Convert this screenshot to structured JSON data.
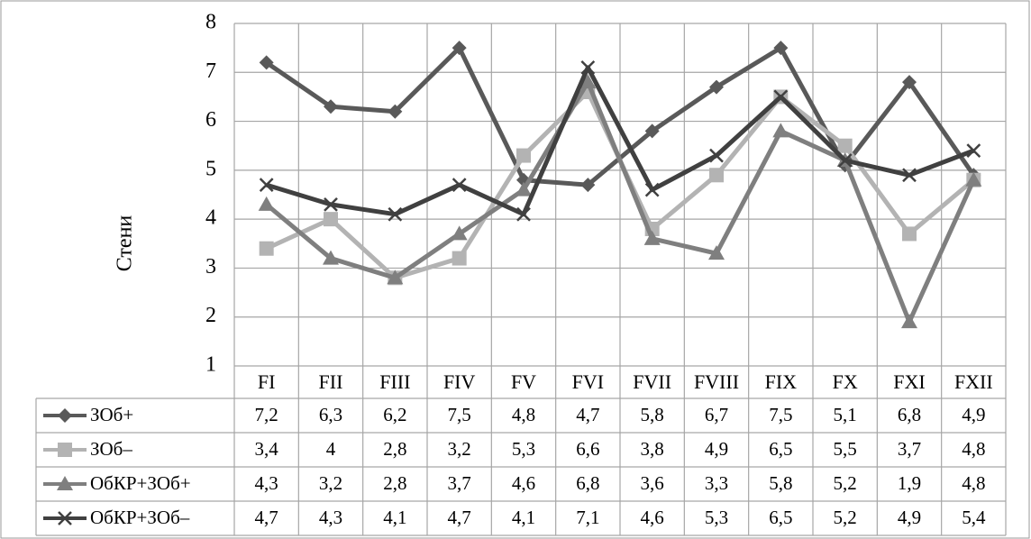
{
  "chart_data": {
    "type": "line",
    "title": "",
    "xlabel": "",
    "ylabel": "Стени",
    "ylim": [
      1,
      8
    ],
    "yticks": [
      1,
      2,
      3,
      4,
      5,
      6,
      7,
      8
    ],
    "grid": true,
    "legend": "data-table-bottom",
    "categories": [
      "FI",
      "FII",
      "FIII",
      "FIV",
      "FV",
      "FVI",
      "FVII",
      "FVIII",
      "FIX",
      "FX",
      "FXI",
      "FXII"
    ],
    "series": [
      {
        "name": "ЗОб+",
        "marker": "diamond",
        "color": "#595959",
        "values": [
          7.2,
          6.3,
          6.2,
          7.5,
          4.8,
          4.7,
          5.8,
          6.7,
          7.5,
          5.1,
          6.8,
          4.9
        ],
        "labels": [
          "7,2",
          "6,3",
          "6,2",
          "7,5",
          "4,8",
          "4,7",
          "5,8",
          "6,7",
          "7,5",
          "5,1",
          "6,8",
          "4,9"
        ]
      },
      {
        "name": "ЗОб–",
        "marker": "square",
        "color": "#b3b3b3",
        "values": [
          3.4,
          4,
          2.8,
          3.2,
          5.3,
          6.6,
          3.8,
          4.9,
          6.5,
          5.5,
          3.7,
          4.8
        ],
        "labels": [
          "3,4",
          "4",
          "2,8",
          "3,2",
          "5,3",
          "6,6",
          "3,8",
          "4,9",
          "6,5",
          "5,5",
          "3,7",
          "4,8"
        ]
      },
      {
        "name": "ОбКР+ЗОб+",
        "marker": "triangle",
        "color": "#7f7f7f",
        "values": [
          4.3,
          3.2,
          2.8,
          3.7,
          4.6,
          6.8,
          3.6,
          3.3,
          5.8,
          5.2,
          1.9,
          4.8
        ],
        "labels": [
          "4,3",
          "3,2",
          "2,8",
          "3,7",
          "4,6",
          "6,8",
          "3,6",
          "3,3",
          "5,8",
          "5,2",
          "1,9",
          "4,8"
        ]
      },
      {
        "name": "ОбКР+ЗОб–",
        "marker": "x",
        "color": "#404040",
        "values": [
          4.7,
          4.3,
          4.1,
          4.7,
          4.1,
          7.1,
          4.6,
          5.3,
          6.5,
          5.2,
          4.9,
          5.4
        ],
        "labels": [
          "4,7",
          "4,3",
          "4,1",
          "4,7",
          "4,1",
          "7,1",
          "4,6",
          "5,3",
          "6,5",
          "5,2",
          "4,9",
          "5,4"
        ]
      }
    ]
  }
}
